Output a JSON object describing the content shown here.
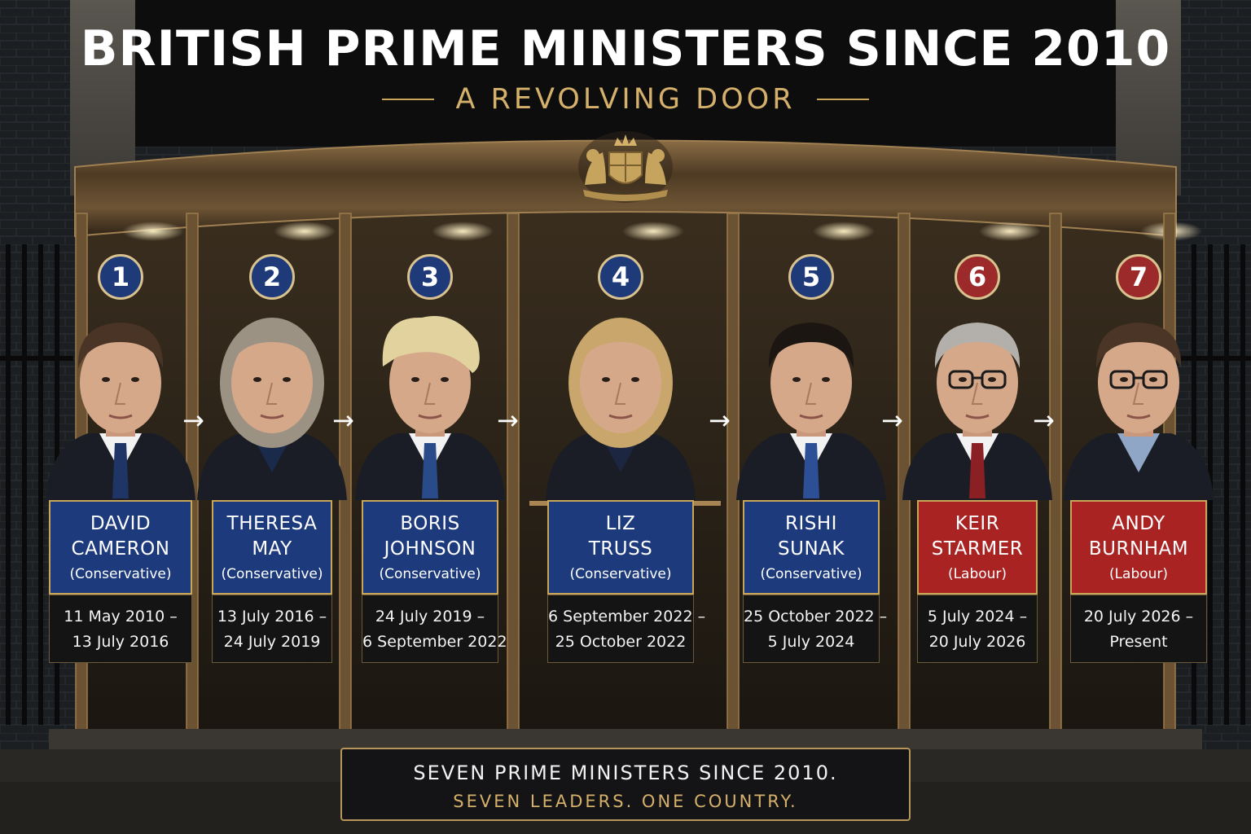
{
  "header": {
    "title": "BRITISH PRIME MINISTERS SINCE 2010",
    "subtitle": "A REVOLVING DOOR"
  },
  "colors": {
    "conservative_blue": "#1c3a7c",
    "labour_red": "#a92322",
    "gold_trim": "#c9a55a",
    "badge_conservative": "#1f3a78",
    "badge_labour": "#9c2a2a"
  },
  "crest_icon": "royal-coat-of-arms-icon",
  "arrow_icon": "arrow-right-icon",
  "prime_ministers": [
    {
      "number": "1",
      "first_name": "DAVID",
      "last_name": "CAMERON",
      "party": "(Conservative)",
      "date_start": "11 May 2010 –",
      "date_end": "13 July 2016",
      "color": "#1c3a7c",
      "badge_color": "#1f3a78",
      "hair": "#4a3426",
      "hair_style": "short",
      "glasses": false,
      "tie": "#1f3565",
      "shirt": "#f2f2f2"
    },
    {
      "number": "2",
      "first_name": "THERESA",
      "last_name": "MAY",
      "party": "(Conservative)",
      "date_start": "13 July 2016 –",
      "date_end": "24 July 2019",
      "color": "#1c3a7c",
      "badge_color": "#1f3a78",
      "hair": "#9c9284",
      "hair_style": "bob",
      "glasses": false,
      "tie": "",
      "shirt": "#1a2a4a"
    },
    {
      "number": "3",
      "first_name": "BORIS",
      "last_name": "JOHNSON",
      "party": "(Conservative)",
      "date_start": "24 July 2019 –",
      "date_end": "6 September 2022",
      "color": "#1c3a7c",
      "badge_color": "#1f3a78",
      "hair": "#e2d39e",
      "hair_style": "messy",
      "glasses": false,
      "tie": "#2a4b8a",
      "shirt": "#f2f2f2"
    },
    {
      "number": "4",
      "first_name": "LIZ",
      "last_name": "TRUSS",
      "party": "(Conservative)",
      "date_start": "6 September 2022 –",
      "date_end": "25 October 2022",
      "color": "#1c3a7c",
      "badge_color": "#1f3a78",
      "hair": "#c9a66b",
      "hair_style": "bob",
      "glasses": false,
      "tie": "",
      "shirt": "#1c2640"
    },
    {
      "number": "5",
      "first_name": "RISHI",
      "last_name": "SUNAK",
      "party": "(Conservative)",
      "date_start": "25 October 2022 –",
      "date_end": "5 July 2024",
      "color": "#1c3a7c",
      "badge_color": "#1f3a78",
      "hair": "#1c1612",
      "hair_style": "short",
      "glasses": false,
      "tie": "#2c4f96",
      "shirt": "#f2f2f2"
    },
    {
      "number": "6",
      "first_name": "KEIR",
      "last_name": "STARMER",
      "party": "(Labour)",
      "date_start": "5 July 2024 –",
      "date_end": "20 July 2026",
      "color": "#a92322",
      "badge_color": "#9c2a2a",
      "hair": "#b3b0ab",
      "hair_style": "short",
      "glasses": true,
      "tie": "#8a1f24",
      "shirt": "#f2f2f2"
    },
    {
      "number": "7",
      "first_name": "ANDY",
      "last_name": "BURNHAM",
      "party": "(Labour)",
      "date_start": "20 July 2026 –",
      "date_end": "Present",
      "color": "#a92322",
      "badge_color": "#9c2a2a",
      "hair": "#4a3526",
      "hair_style": "short",
      "glasses": true,
      "tie": "",
      "shirt": "#8fa6c6"
    }
  ],
  "footer": {
    "line1": "SEVEN PRIME MINISTERS SINCE 2010.",
    "line2": "SEVEN LEADERS. ONE COUNTRY."
  }
}
